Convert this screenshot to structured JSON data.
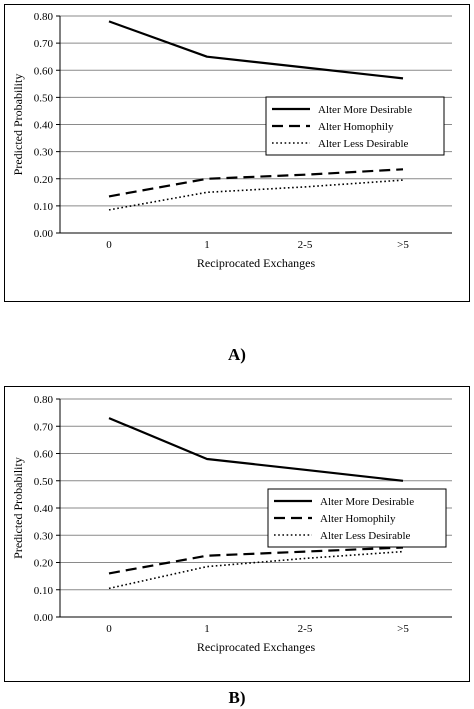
{
  "panels": [
    {
      "caption": "A)",
      "chart_data": {
        "type": "line",
        "categories": [
          "0",
          "1",
          "2-5",
          ">5"
        ],
        "ylabel": "Predicted Probability",
        "xlabel": "Reciprocated Exchanges",
        "ylim": [
          0,
          0.8
        ],
        "yticks": [
          "0.00",
          "0.10",
          "0.20",
          "0.30",
          "0.40",
          "0.50",
          "0.60",
          "0.70",
          "0.80"
        ],
        "grid": true,
        "legend_position": "right",
        "series": [
          {
            "name": "Alter More Desirable",
            "style": "solid",
            "values": [
              0.78,
              0.65,
              0.61,
              0.57
            ]
          },
          {
            "name": "Alter Homophily",
            "style": "dashed",
            "values": [
              0.135,
              0.2,
              0.215,
              0.235
            ]
          },
          {
            "name": "Alter Less Desirable",
            "style": "dotted",
            "values": [
              0.085,
              0.15,
              0.17,
              0.195
            ]
          }
        ]
      }
    },
    {
      "caption": "B)",
      "chart_data": {
        "type": "line",
        "categories": [
          "0",
          "1",
          "2-5",
          ">5"
        ],
        "ylabel": "Predicted Probability",
        "xlabel": "Reciprocated Exchanges",
        "ylim": [
          0,
          0.8
        ],
        "yticks": [
          "0.00",
          "0.10",
          "0.20",
          "0.30",
          "0.40",
          "0.50",
          "0.60",
          "0.70",
          "0.80"
        ],
        "grid": true,
        "legend_position": "right",
        "series": [
          {
            "name": "Alter More Desirable",
            "style": "solid",
            "values": [
              0.73,
              0.58,
              0.54,
              0.5
            ]
          },
          {
            "name": "Alter Homophily",
            "style": "dashed",
            "values": [
              0.16,
              0.225,
              0.24,
              0.255
            ]
          },
          {
            "name": "Alter Less Desirable",
            "style": "dotted",
            "values": [
              0.105,
              0.185,
              0.215,
              0.24
            ]
          }
        ]
      }
    }
  ]
}
